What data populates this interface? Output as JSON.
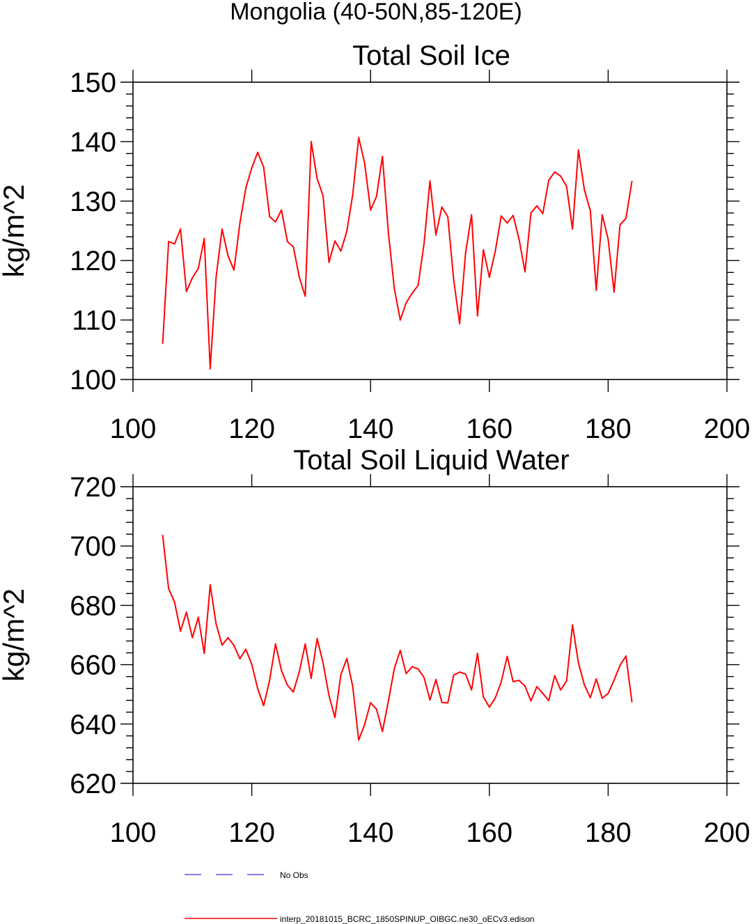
{
  "page_title": "Mongolia (40-50N,85-120E)",
  "colors": {
    "series": "#ff0000",
    "obs": "#5555ee",
    "axis": "#000000"
  },
  "legend": {
    "entries": [
      {
        "label": "No Obs",
        "style": "dashed",
        "color": "#5555ee"
      },
      {
        "label": "interp_20181015_BCRC_1850SPINUP_OIBGC.ne30_oECv3.edison",
        "style": "solid",
        "color": "#ff0000"
      }
    ]
  },
  "chart_data": [
    {
      "type": "line",
      "title": "Total Soil Ice",
      "xlabel": "",
      "ylabel": "kg/m^2",
      "xlim": [
        100,
        200
      ],
      "ylim": [
        100,
        150
      ],
      "xticks": [
        "100",
        "120",
        "140",
        "160",
        "180",
        "200"
      ],
      "yticks": [
        "100",
        "110",
        "120",
        "130",
        "140",
        "150"
      ],
      "grid": false,
      "series": [
        {
          "name": "interp_20181015_BCRC_1850SPINUP_OIBGC.ne30_oECv3.edison",
          "x": [
            105,
            106,
            107,
            108,
            109,
            110,
            111,
            112,
            113,
            114,
            115,
            116,
            117,
            118,
            119,
            120,
            121,
            122,
            123,
            124,
            125,
            126,
            127,
            128,
            129,
            130,
            131,
            132,
            133,
            134,
            135,
            136,
            137,
            138,
            139,
            140,
            141,
            142,
            143,
            144,
            145,
            146,
            147,
            148,
            149,
            150,
            151,
            152,
            153,
            154,
            155,
            156,
            157,
            158,
            159,
            160,
            161,
            162,
            163,
            164,
            165,
            166,
            167,
            168,
            169,
            170,
            171,
            172,
            173,
            174,
            175,
            176,
            177,
            178,
            179,
            180,
            181,
            182,
            183,
            184
          ],
          "values": [
            106.1,
            123.2,
            122.8,
            125.3,
            114.8,
            117.1,
            118.7,
            123.7,
            101.8,
            117.3,
            125.3,
            120.8,
            118.4,
            126.3,
            132.2,
            135.6,
            138.2,
            135.7,
            127.4,
            126.5,
            128.5,
            123.2,
            122.3,
            117.2,
            114.0,
            140.0,
            133.8,
            130.9,
            119.7,
            123.3,
            121.6,
            124.9,
            131.1,
            140.7,
            136.4,
            128.5,
            130.8,
            137.5,
            124.7,
            115.3,
            110.0,
            112.9,
            114.5,
            115.8,
            122.8,
            133.4,
            124.3,
            129.0,
            127.4,
            116.7,
            109.4,
            121.3,
            127.7,
            110.7,
            121.8,
            117.2,
            121.6,
            127.5,
            126.3,
            127.6,
            123.6,
            118.1,
            128.0,
            129.2,
            127.9,
            133.5,
            134.9,
            134.2,
            132.5,
            125.3,
            138.6,
            131.9,
            128.4,
            115.0,
            127.7,
            123.6,
            114.7,
            126.0,
            127.1,
            133.3
          ]
        }
      ]
    },
    {
      "type": "line",
      "title": "Total Soil Liquid Water",
      "xlabel": "",
      "ylabel": "kg/m^2",
      "xlim": [
        100,
        200
      ],
      "ylim": [
        620,
        720
      ],
      "xticks": [
        "100",
        "120",
        "140",
        "160",
        "180",
        "200"
      ],
      "yticks": [
        "620",
        "640",
        "660",
        "680",
        "700",
        "720"
      ],
      "grid": false,
      "series": [
        {
          "name": "interp_20181015_BCRC_1850SPINUP_OIBGC.ne30_oECv3.edison",
          "x": [
            105,
            106,
            107,
            108,
            109,
            110,
            111,
            112,
            113,
            114,
            115,
            116,
            117,
            118,
            119,
            120,
            121,
            122,
            123,
            124,
            125,
            126,
            127,
            128,
            129,
            130,
            131,
            132,
            133,
            134,
            135,
            136,
            137,
            138,
            139,
            140,
            141,
            142,
            143,
            144,
            145,
            146,
            147,
            148,
            149,
            150,
            151,
            152,
            153,
            154,
            155,
            156,
            157,
            158,
            159,
            160,
            161,
            162,
            163,
            164,
            165,
            166,
            167,
            168,
            169,
            170,
            171,
            172,
            173,
            174,
            175,
            176,
            177,
            178,
            179,
            180,
            181,
            182,
            183,
            184
          ],
          "values": [
            703.6,
            685.6,
            681.1,
            671.3,
            677.7,
            669.1,
            676.0,
            663.8,
            686.9,
            673.7,
            666.6,
            669.1,
            666.5,
            662.0,
            665.2,
            660.1,
            651.9,
            646.2,
            654.7,
            667.0,
            658.0,
            653.1,
            650.8,
            657.6,
            667.0,
            655.4,
            668.8,
            660.6,
            649.6,
            642.2,
            656.6,
            662.1,
            652.6,
            634.6,
            639.8,
            647.2,
            645.0,
            637.5,
            647.7,
            658.7,
            664.8,
            657.0,
            659.3,
            658.6,
            655.7,
            648.1,
            655.0,
            647.3,
            647.1,
            656.5,
            657.5,
            656.8,
            651.5,
            663.8,
            649.1,
            645.7,
            648.8,
            654.2,
            662.8,
            654.3,
            654.7,
            652.8,
            647.8,
            652.6,
            650.3,
            647.9,
            656.3,
            651.5,
            654.5,
            673.4,
            660.6,
            653.2,
            648.9,
            655.2,
            648.7,
            650.3,
            654.8,
            659.8,
            662.9,
            647.5
          ]
        }
      ]
    }
  ]
}
